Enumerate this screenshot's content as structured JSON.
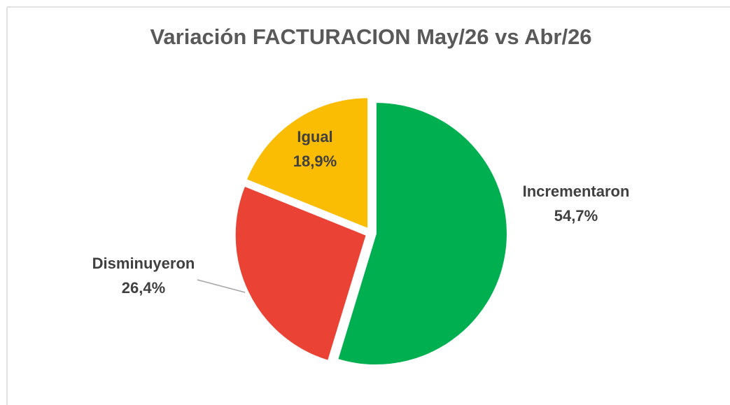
{
  "chart_data": {
    "type": "pie",
    "title": "Variación FACTURACION  May/26 vs Abr/26",
    "categories": [
      "Incrementaron",
      "Disminuyeron",
      "Igual"
    ],
    "values": [
      54.7,
      26.4,
      18.9
    ],
    "value_labels": [
      "54,7%",
      "26,4%",
      "18,9%"
    ],
    "colors": [
      "#00b050",
      "#ea4335",
      "#fbbc04"
    ]
  }
}
